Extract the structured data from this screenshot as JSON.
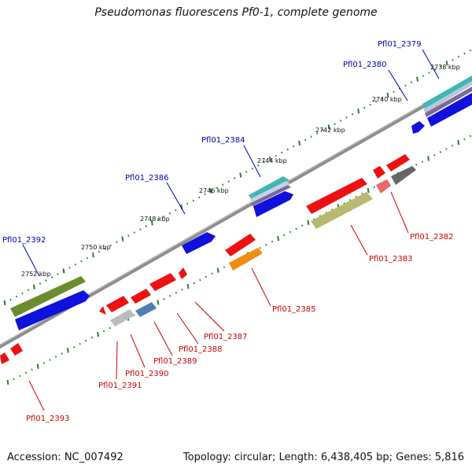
{
  "title": "Pseudomonas fluorescens Pf0-1, complete genome",
  "footer": {
    "accession": "Accession: NC_007492",
    "topology": "Topology: circular; Length: 6,438,405 bp; Genes: 5,816"
  },
  "ruler_labels": [
    "2738 kbp",
    "2740 kbp",
    "2742 kbp",
    "2744 kbp",
    "2746 kbp",
    "2748 kbp",
    "2750 kbp",
    "2752 kbp"
  ],
  "gene_labels": {
    "forward": [
      "Pfl01_2379",
      "Pfl01_2380",
      "Pfl01_2384",
      "Pfl01_2386",
      "Pfl01_2392"
    ],
    "reverse": [
      "Pfl01_2382",
      "Pfl01_2383",
      "Pfl01_2385",
      "Pfl01_2387",
      "Pfl01_2388",
      "Pfl01_2389",
      "Pfl01_2390",
      "Pfl01_2391",
      "Pfl01_2393"
    ]
  },
  "colors": {
    "forward_label": "#0000aa",
    "reverse_label": "#cc0000",
    "backbone": "#888888",
    "ruler": "#2a7d2a"
  }
}
